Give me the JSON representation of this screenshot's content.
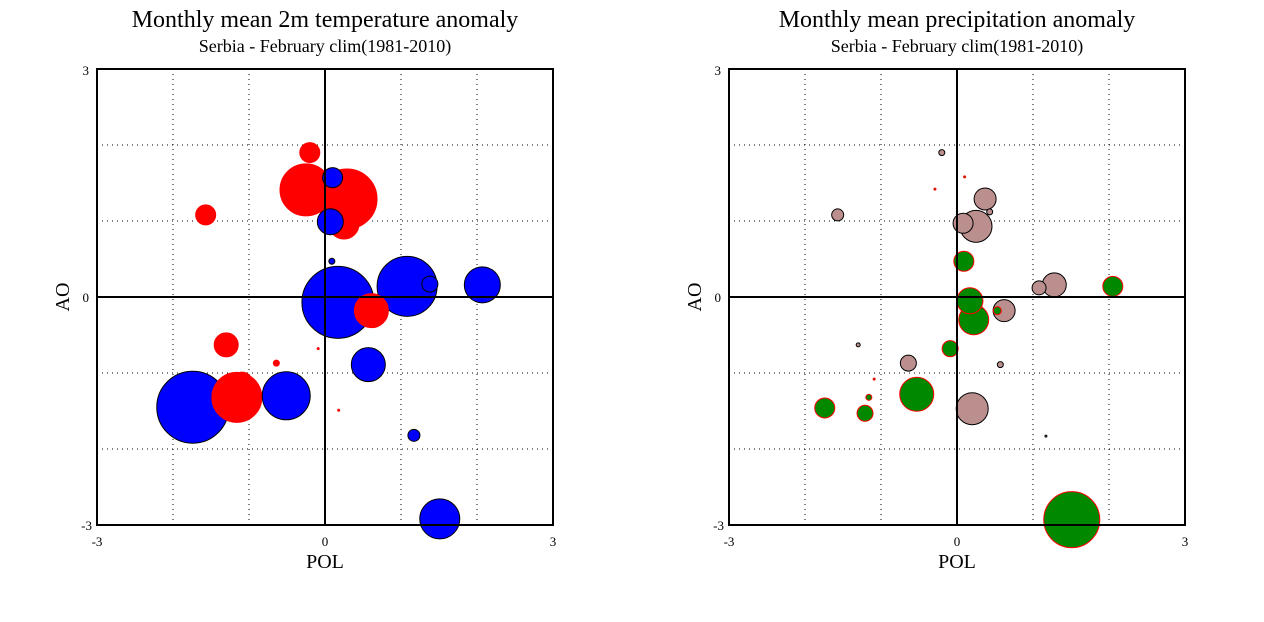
{
  "chart_data": [
    {
      "type": "scatter",
      "title": "Monthly mean 2m temperature anomaly",
      "subtitle": "Serbia - February  clim(1981-2010)",
      "xlabel": "POL",
      "ylabel": "AO",
      "xlim": [
        -3,
        3
      ],
      "ylim": [
        -3,
        3
      ],
      "x_ticks": [
        "-3",
        "0",
        "3"
      ],
      "y_ticks": [
        "3",
        "0",
        "-3"
      ],
      "grid": true,
      "colors": {
        "positive": "#ff0000",
        "negative": "#0000ff",
        "outline_negative": "#000000",
        "outline_positive": "#ff0000"
      },
      "series": [
        {
          "name": "positive",
          "points": [
            {
              "x": -0.2,
              "y": 1.9,
              "size": 10
            },
            {
              "x": -0.25,
              "y": 1.41,
              "size": 26
            },
            {
              "x": 0.29,
              "y": 1.29,
              "size": 30
            },
            {
              "x": 0.25,
              "y": 0.96,
              "size": 15
            },
            {
              "x": -1.57,
              "y": 1.08,
              "size": 10
            },
            {
              "x": 0.61,
              "y": -0.18,
              "size": 17
            },
            {
              "x": -1.3,
              "y": -0.63,
              "size": 12
            },
            {
              "x": -0.64,
              "y": -0.87,
              "size": 3
            },
            {
              "x": -0.09,
              "y": -0.68,
              "size": 1
            },
            {
              "x": -1.09,
              "y": -1.12,
              "size": 10
            },
            {
              "x": -1.16,
              "y": -1.32,
              "size": 25
            },
            {
              "x": 0.18,
              "y": -1.49,
              "size": 1
            }
          ]
        },
        {
          "name": "negative",
          "points": [
            {
              "x": 0.1,
              "y": 1.57,
              "size": 10
            },
            {
              "x": 0.07,
              "y": 0.99,
              "size": 13
            },
            {
              "x": 0.09,
              "y": 0.47,
              "size": 3
            },
            {
              "x": 0.17,
              "y": -0.07,
              "size": 36
            },
            {
              "x": 1.38,
              "y": 0.17,
              "size": 8
            },
            {
              "x": 1.08,
              "y": 0.14,
              "size": 30
            },
            {
              "x": 2.07,
              "y": 0.16,
              "size": 18
            },
            {
              "x": 0.57,
              "y": -0.89,
              "size": 17
            },
            {
              "x": -1.74,
              "y": -1.45,
              "size": 36
            },
            {
              "x": -0.51,
              "y": -1.3,
              "size": 24
            },
            {
              "x": 1.17,
              "y": -1.82,
              "size": 6
            },
            {
              "x": 1.51,
              "y": -2.92,
              "size": 20
            }
          ]
        }
      ]
    },
    {
      "type": "scatter",
      "title": "Monthly mean precipitation anomaly",
      "subtitle": "Serbia - February  clim(1981-2010)",
      "xlabel": "POL",
      "ylabel": "AO",
      "xlim": [
        -3,
        3
      ],
      "ylim": [
        -3,
        3
      ],
      "x_ticks": [
        "-3",
        "0",
        "3"
      ],
      "y_ticks": [
        "3",
        "0",
        "-3"
      ],
      "grid": true,
      "colors": {
        "positive": "#008800",
        "negative": "#bc8f8f",
        "outline_negative": "#000000",
        "outline_positive": "#ff0000"
      },
      "series": [
        {
          "name": "negative",
          "points": [
            {
              "x": -0.2,
              "y": 1.9,
              "size": 3
            },
            {
              "x": 0.37,
              "y": 1.29,
              "size": 11
            },
            {
              "x": 0.43,
              "y": 1.12,
              "size": 3
            },
            {
              "x": 0.08,
              "y": 0.97,
              "size": 10
            },
            {
              "x": 0.25,
              "y": 0.93,
              "size": 16
            },
            {
              "x": -1.57,
              "y": 1.08,
              "size": 6
            },
            {
              "x": 1.28,
              "y": 0.16,
              "size": 12
            },
            {
              "x": 1.08,
              "y": 0.12,
              "size": 7
            },
            {
              "x": 0.62,
              "y": -0.18,
              "size": 11
            },
            {
              "x": 0.57,
              "y": -0.89,
              "size": 3
            },
            {
              "x": -1.3,
              "y": -0.63,
              "size": 2
            },
            {
              "x": -0.64,
              "y": -0.87,
              "size": 8
            },
            {
              "x": 0.2,
              "y": -1.47,
              "size": 16
            },
            {
              "x": 1.17,
              "y": -1.83,
              "size": 1
            }
          ]
        },
        {
          "name": "positive",
          "points": [
            {
              "x": 0.1,
              "y": 1.58,
              "size": 1
            },
            {
              "x": -0.29,
              "y": 1.42,
              "size": 1
            },
            {
              "x": 0.09,
              "y": 0.47,
              "size": 10
            },
            {
              "x": 2.05,
              "y": 0.14,
              "size": 10
            },
            {
              "x": 0.17,
              "y": -0.05,
              "size": 13
            },
            {
              "x": 0.22,
              "y": -0.3,
              "size": 15
            },
            {
              "x": 0.53,
              "y": -0.18,
              "size": 4
            },
            {
              "x": -0.09,
              "y": -0.68,
              "size": 8
            },
            {
              "x": -1.09,
              "y": -1.08,
              "size": 1
            },
            {
              "x": -1.16,
              "y": -1.32,
              "size": 3
            },
            {
              "x": -1.74,
              "y": -1.46,
              "size": 10
            },
            {
              "x": -1.21,
              "y": -1.53,
              "size": 8
            },
            {
              "x": -0.53,
              "y": -1.28,
              "size": 17
            },
            {
              "x": 1.51,
              "y": -2.93,
              "size": 28
            }
          ]
        }
      ]
    }
  ]
}
